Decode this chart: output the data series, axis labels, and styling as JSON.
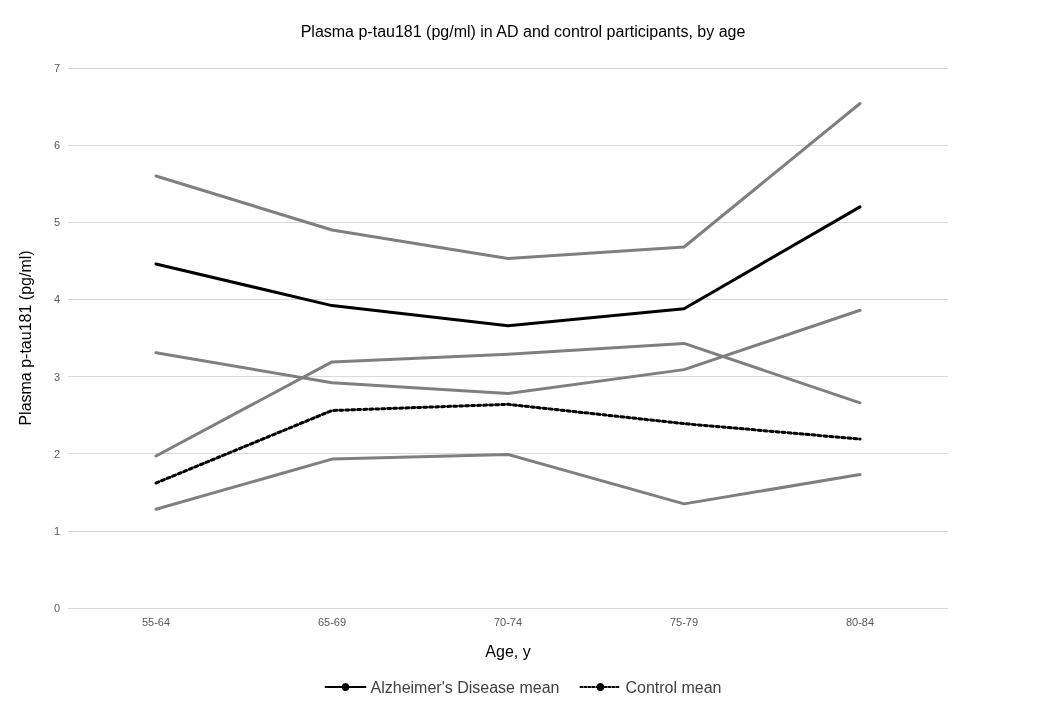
{
  "chart_data": {
    "type": "line",
    "title": "Plasma p-tau181 (pg/ml) in AD and control participants, by age",
    "xlabel": "Age, y",
    "ylabel": "Plasma p-tau181 (pg/ml)",
    "categories": [
      "55-64",
      "65-69",
      "70-74",
      "75-79",
      "80-84"
    ],
    "series": [
      {
        "color": "#7f7f7f",
        "values": [
          5.6,
          4.9,
          4.53,
          4.68,
          6.54
        ]
      },
      {
        "name": "Alzheimer's Disease mean",
        "color": "#000000",
        "values": [
          4.46,
          3.92,
          3.66,
          3.88,
          5.2
        ]
      },
      {
        "color": "#7f7f7f",
        "values": [
          3.31,
          2.92,
          2.78,
          3.09,
          3.86
        ]
      },
      {
        "color": "#7f7f7f",
        "values": [
          1.97,
          3.19,
          3.29,
          3.43,
          2.66
        ]
      },
      {
        "name": "Control mean",
        "color": "#000000",
        "line_style": "dotted",
        "values": [
          1.62,
          2.56,
          2.64,
          2.39,
          2.19
        ]
      },
      {
        "color": "#7f7f7f",
        "values": [
          1.28,
          1.93,
          1.99,
          1.35,
          1.73
        ]
      }
    ],
    "ylim": [
      0,
      7
    ],
    "yticks": [
      0,
      1,
      2,
      3,
      4,
      5,
      6,
      7
    ],
    "grid": "y",
    "legend": "bottom",
    "marker": "none"
  }
}
